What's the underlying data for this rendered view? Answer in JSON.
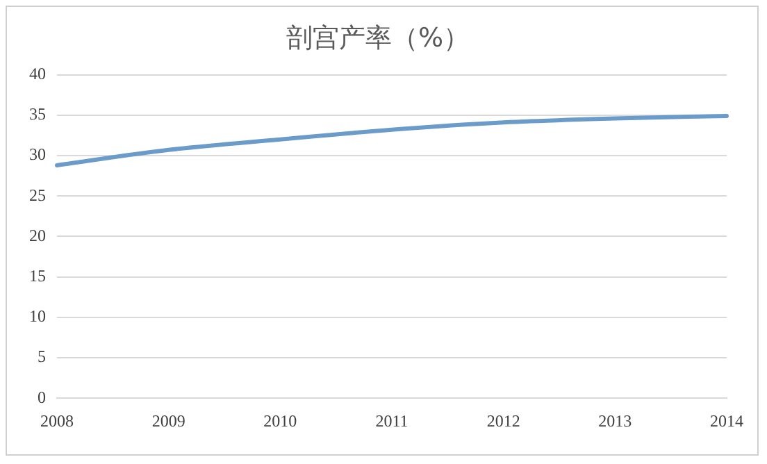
{
  "chart_data": {
    "type": "line",
    "title": "剖宫产率（%）",
    "categories": [
      "2008",
      "2009",
      "2010",
      "2011",
      "2012",
      "2013",
      "2014"
    ],
    "series": [
      {
        "color": "#6b9bc9",
        "values": [
          28.8,
          30.7,
          32.0,
          33.2,
          34.1,
          34.6,
          34.9
        ]
      }
    ],
    "ylim": [
      0,
      40
    ],
    "yticks": [
      0,
      5,
      10,
      15,
      20,
      25,
      30,
      35,
      40
    ],
    "grid": "y",
    "legend": false,
    "marker": "none"
  }
}
